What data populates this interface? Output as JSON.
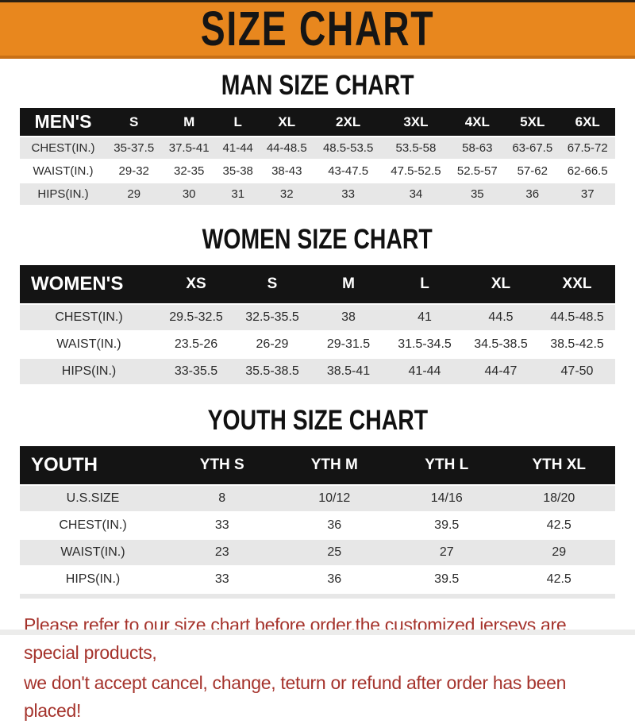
{
  "banner": {
    "title": "SIZE CHART"
  },
  "sections": [
    {
      "id": "men",
      "heading": "MAN SIZE CHART",
      "corner_label": "MEN'S",
      "columns": [
        "S",
        "M",
        "L",
        "XL",
        "2XL",
        "3XL",
        "4XL",
        "5XL",
        "6XL"
      ],
      "rows": [
        {
          "label": "CHEST(IN.)",
          "values": [
            "35-37.5",
            "37.5-41",
            "41-44",
            "44-48.5",
            "48.5-53.5",
            "53.5-58",
            "58-63",
            "63-67.5",
            "67.5-72"
          ]
        },
        {
          "label": "WAIST(IN.)",
          "values": [
            "29-32",
            "32-35",
            "35-38",
            "38-43",
            "43-47.5",
            "47.5-52.5",
            "52.5-57",
            "57-62",
            "62-66.5"
          ]
        },
        {
          "label": "HIPS(IN.)",
          "values": [
            "29",
            "30",
            "31",
            "32",
            "33",
            "34",
            "35",
            "36",
            "37"
          ]
        }
      ]
    },
    {
      "id": "women",
      "heading": "WOMEN SIZE CHART",
      "corner_label": "WOMEN'S",
      "columns": [
        "XS",
        "S",
        "M",
        "L",
        "XL",
        "XXL"
      ],
      "rows": [
        {
          "label": "CHEST(IN.)",
          "values": [
            "29.5-32.5",
            "32.5-35.5",
            "38",
            "41",
            "44.5",
            "44.5-48.5"
          ]
        },
        {
          "label": "WAIST(IN.)",
          "values": [
            "23.5-26",
            "26-29",
            "29-31.5",
            "31.5-34.5",
            "34.5-38.5",
            "38.5-42.5"
          ]
        },
        {
          "label": "HIPS(IN.)",
          "values": [
            "33-35.5",
            "35.5-38.5",
            "38.5-41",
            "41-44",
            "44-47",
            "47-50"
          ]
        }
      ]
    },
    {
      "id": "youth",
      "heading": "YOUTH SIZE CHART",
      "corner_label": "YOUTH",
      "columns": [
        "YTH S",
        "YTH M",
        "YTH L",
        "YTH XL"
      ],
      "rows": [
        {
          "label": "U.S.SIZE",
          "values": [
            "8",
            "10/12",
            "14/16",
            "18/20"
          ]
        },
        {
          "label": "CHEST(IN.)",
          "values": [
            "33",
            "36",
            "39.5",
            "42.5"
          ]
        },
        {
          "label": "WAIST(IN.)",
          "values": [
            "23",
            "25",
            "27",
            "29"
          ]
        },
        {
          "label": "HIPS(IN.)",
          "values": [
            "33",
            "36",
            "39.5",
            "42.5"
          ]
        }
      ]
    }
  ],
  "footer": {
    "lines": [
      "Please refer to our size chart before order,the customized jerseys are special products,",
      "we don't accept cancel, change, teturn or refund after order has been placed!"
    ]
  },
  "colors": {
    "banner_bg": "#E8871E",
    "banner_border": "#C97015",
    "table_header_bg": "#141414",
    "row_alt_bg": "#E7E7E7",
    "footer_text": "#A5332C"
  }
}
